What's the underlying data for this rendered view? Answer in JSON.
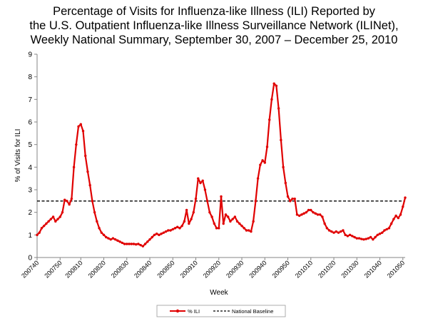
{
  "chart_data": {
    "type": "line",
    "title_lines": [
      "Percentage of Visits for Influenza-like Illness (ILI) Reported by",
      "the U.S. Outpatient Influenza-like Illness Surveillance Network (ILINet),",
      "Weekly National Summary, September 30, 2007 – December 25, 2010"
    ],
    "xlabel": "Week",
    "ylabel": "% of Visits for ILI",
    "ylim": [
      0,
      9
    ],
    "yticks": [
      0,
      1,
      2,
      3,
      4,
      5,
      6,
      7,
      8,
      9
    ],
    "grid": false,
    "legend_position": "bottom",
    "x_tick_labels": [
      "200740",
      "200750",
      "200810",
      "200820",
      "200830",
      "200840",
      "200850",
      "200910",
      "200920",
      "200930",
      "200940",
      "200950",
      "201010",
      "201020",
      "201030",
      "201040",
      "201050"
    ],
    "x_tick_index": [
      0,
      10,
      19,
      29,
      39,
      49,
      59,
      69,
      79,
      89,
      99,
      109,
      119,
      129,
      139,
      149,
      159
    ],
    "series": [
      {
        "name": "% ILI",
        "color": "#e00000",
        "style": "solid-markers",
        "values": [
          1.0,
          1.1,
          1.3,
          1.4,
          1.5,
          1.6,
          1.7,
          1.8,
          1.6,
          1.7,
          1.8,
          2.0,
          2.55,
          2.5,
          2.35,
          2.6,
          4.0,
          5.0,
          5.8,
          5.9,
          5.6,
          4.5,
          3.8,
          3.2,
          2.5,
          2.0,
          1.6,
          1.3,
          1.1,
          1.0,
          0.9,
          0.85,
          0.8,
          0.85,
          0.8,
          0.75,
          0.7,
          0.65,
          0.6,
          0.6,
          0.6,
          0.6,
          0.6,
          0.58,
          0.6,
          0.55,
          0.5,
          0.6,
          0.7,
          0.8,
          0.9,
          1.0,
          1.05,
          1.0,
          1.05,
          1.1,
          1.15,
          1.2,
          1.2,
          1.25,
          1.3,
          1.35,
          1.3,
          1.4,
          1.6,
          2.1,
          1.5,
          1.7,
          2.0,
          2.6,
          3.5,
          3.3,
          3.4,
          3.0,
          2.5,
          2.0,
          1.8,
          1.5,
          1.3,
          1.3,
          2.7,
          1.5,
          1.9,
          1.8,
          1.6,
          1.7,
          1.8,
          1.6,
          1.5,
          1.4,
          1.3,
          1.2,
          1.2,
          1.15,
          1.6,
          2.5,
          3.5,
          4.1,
          4.3,
          4.2,
          4.9,
          6.1,
          7.0,
          7.7,
          7.6,
          6.6,
          5.2,
          4.0,
          3.3,
          2.7,
          2.5,
          2.6,
          2.6,
          1.9,
          1.85,
          1.9,
          1.95,
          2.0,
          2.1,
          2.1,
          2.0,
          1.95,
          1.9,
          1.9,
          1.8,
          1.5,
          1.3,
          1.2,
          1.15,
          1.1,
          1.15,
          1.1,
          1.15,
          1.2,
          1.0,
          0.95,
          1.0,
          0.95,
          0.9,
          0.85,
          0.85,
          0.82,
          0.8,
          0.82,
          0.85,
          0.9,
          0.8,
          0.9,
          1.0,
          1.05,
          1.1,
          1.2,
          1.25,
          1.3,
          1.5,
          1.7,
          1.85,
          1.75,
          1.9,
          2.25,
          2.65
        ]
      },
      {
        "name": "National Baseline",
        "color": "#000000",
        "style": "dashed",
        "values": [
          2.5
        ]
      }
    ]
  }
}
